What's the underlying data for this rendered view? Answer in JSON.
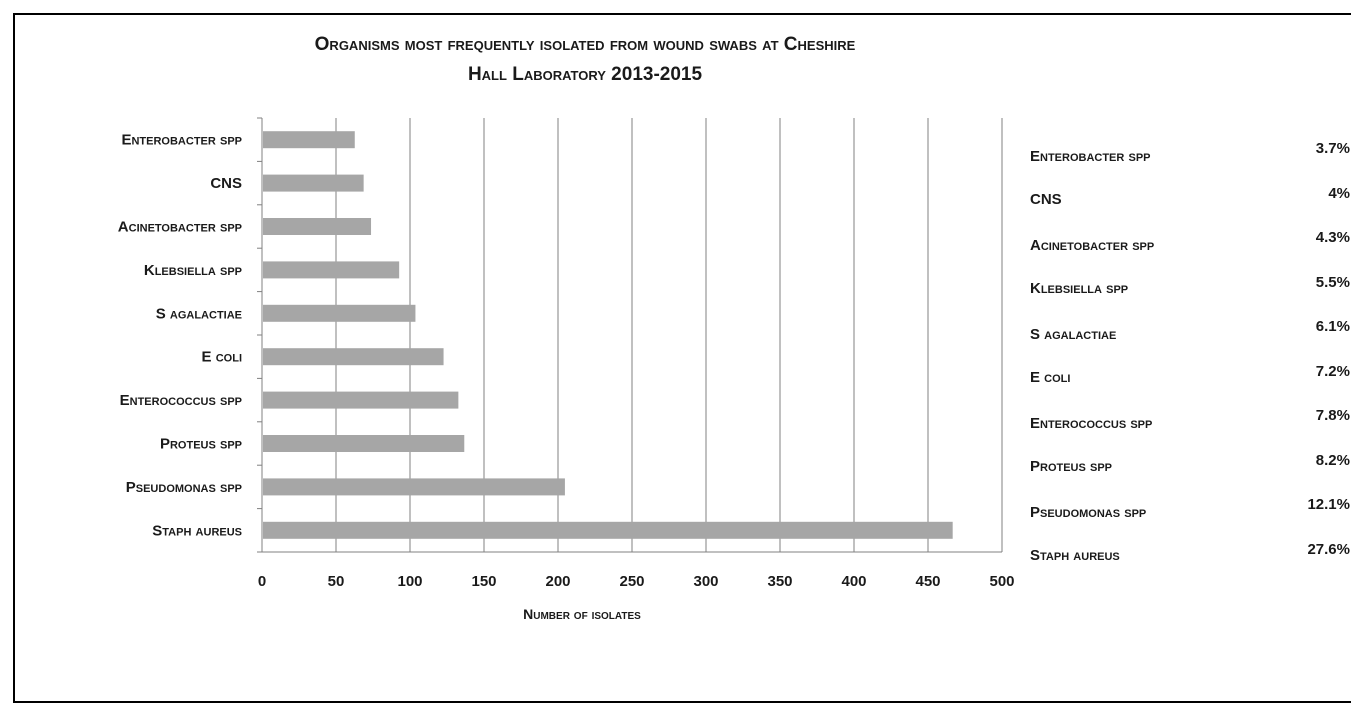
{
  "title_line1": "Organisms most frequently isolated from wound swabs at Cheshire",
  "title_line2": "Hall Laboratory 2013-2015",
  "chart_data": {
    "type": "bar",
    "orientation": "horizontal",
    "title": "Organisms most frequently isolated from wound swabs at Cheshire Hall Laboratory 2013-2015",
    "xlabel": "Number of isolates",
    "ylabel": "",
    "categories": [
      "Enterobacter spp",
      "CNS",
      "Acinetobacter spp",
      "Klebsiella spp",
      "S agalactiae",
      "E coli",
      "Enterococcus spp",
      "Proteus spp",
      "Pseudomonas spp",
      "Staph aureus"
    ],
    "values": [
      62,
      68,
      73,
      92,
      103,
      122,
      132,
      136,
      204,
      466
    ],
    "xlim": [
      0,
      500
    ],
    "xticks": [
      "0",
      "50",
      "100",
      "150",
      "200",
      "250",
      "300",
      "350",
      "400",
      "450",
      "500"
    ],
    "grid": "vertical",
    "bar_color": "#a6a6a6"
  },
  "percent_table": [
    {
      "name": "Enterobacter spp",
      "percent": "3.7%"
    },
    {
      "name": "CNS",
      "percent": "4%"
    },
    {
      "name": "Acinetobacter spp",
      "percent": "4.3%"
    },
    {
      "name": "Klebsiella spp",
      "percent": "5.5%"
    },
    {
      "name": "S agalactiae",
      "percent": "6.1%"
    },
    {
      "name": "E coli",
      "percent": "7.2%"
    },
    {
      "name": "Enterococcus spp",
      "percent": "7.8%"
    },
    {
      "name": "Proteus spp",
      "percent": "8.2%"
    },
    {
      "name": "Pseudomonas spp",
      "percent": "12.1%"
    },
    {
      "name": "Staph aureus",
      "percent": "27.6%"
    }
  ]
}
